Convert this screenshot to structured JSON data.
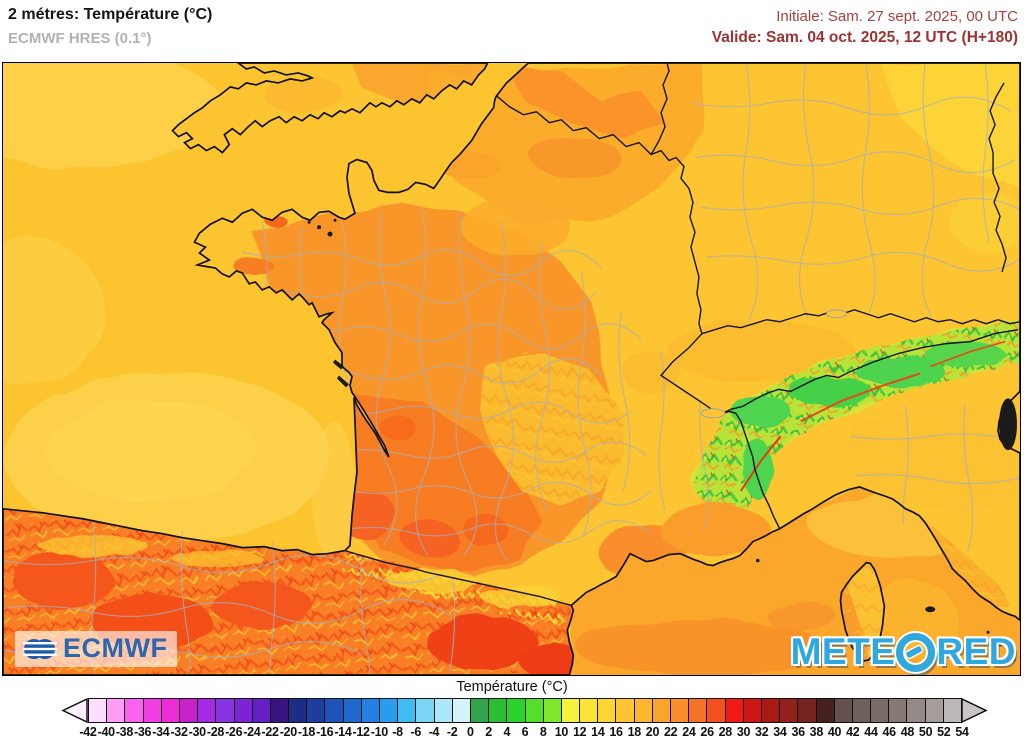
{
  "header": {
    "title": "2 métres: Température (°C)",
    "subtitle": "ECMWF HRES (0.1°)",
    "init_label": "Initiale: Sam. 27 sept. 2025, 00 UTC",
    "valid_label": "Valide: Sam. 04 oct. 2025, 12 UTC (H+180)"
  },
  "logos": {
    "ecmwf": "ECMWF",
    "meteored_left": "METE",
    "meteored_right": "RED"
  },
  "legend": {
    "label": "Température (°C)",
    "ticks": [
      "-42",
      "-40",
      "-38",
      "-36",
      "-34",
      "-32",
      "-30",
      "-28",
      "-26",
      "-24",
      "-22",
      "-20",
      "-18",
      "-16",
      "-14",
      "-12",
      "-10",
      "-8",
      "-6",
      "-4",
      "-2",
      "0",
      "2",
      "4",
      "6",
      "8",
      "10",
      "12",
      "14",
      "16",
      "18",
      "20",
      "22",
      "24",
      "26",
      "28",
      "30",
      "32",
      "34",
      "36",
      "38",
      "40",
      "42",
      "44",
      "46",
      "48",
      "50",
      "52",
      "54"
    ],
    "segment_colors": [
      "#FEDEFD",
      "#FE9EF7",
      "#FB61EF",
      "#F23FE3",
      "#ED2BD9",
      "#C722C7",
      "#A42BE3",
      "#8833E0",
      "#7A24D4",
      "#651FC2",
      "#3A1582",
      "#1D2C85",
      "#1E3D9E",
      "#1E54B8",
      "#2068CE",
      "#2580E0",
      "#2B9CEC",
      "#3FBCF2",
      "#7AD4F6",
      "#ADE7FA",
      "#D4F4FC",
      "#33A44E",
      "#2BBE33",
      "#2BD22B",
      "#55DF2D",
      "#7EE92C",
      "#F6F13D",
      "#FBE437",
      "#FCD434",
      "#FCC531",
      "#FBB52E",
      "#FAA42B",
      "#F98E2A",
      "#F77326",
      "#F4511F",
      "#EE1A15",
      "#CE1613",
      "#AA1A15",
      "#92221B",
      "#73241F",
      "#47211F",
      "#635150",
      "#6F5F5D",
      "#7A6B69",
      "#857875",
      "#948987",
      "#A59D9C",
      "#BDB8B7"
    ],
    "left_arrow_color": "#FDEFFD",
    "right_arrow_color": "#C9C5C4"
  },
  "map_palette": {
    "sea": "#FCC42E",
    "sea_light": "#FDD14A",
    "mediterranean": "#FAA72B",
    "land_yellow": "#FCC531",
    "land_orange": "#F9962B",
    "land_deep_orange": "#F87B24",
    "alps_green": "#45D04A",
    "spain_red": "#F4551B",
    "header_red": "#A6413F",
    "ecmwf_blue": "#2E66AD",
    "meteored_cyan": "#2FA8E0"
  }
}
